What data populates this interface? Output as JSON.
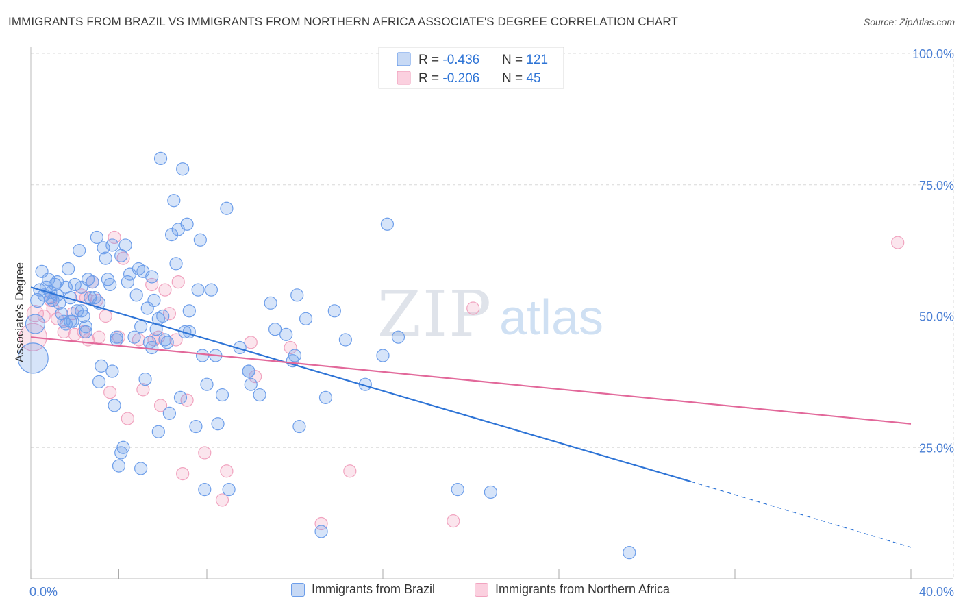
{
  "header": {
    "title": "IMMIGRANTS FROM BRAZIL VS IMMIGRANTS FROM NORTHERN AFRICA ASSOCIATE'S DEGREE CORRELATION CHART",
    "source": "Source: ZipAtlas.com"
  },
  "watermark": {
    "zip": "ZIP",
    "atlas": "atlas"
  },
  "legend_top": {
    "rows": [
      {
        "r_label": "R = ",
        "r_value": "-0.436",
        "n_label": "N = ",
        "n_value": "121"
      },
      {
        "r_label": "R = ",
        "r_value": "-0.206",
        "n_label": "N = ",
        "n_value": "45"
      }
    ]
  },
  "chart_data": {
    "type": "scatter",
    "title": "IMMIGRANTS FROM BRAZIL VS IMMIGRANTS FROM NORTHERN AFRICA ASSOCIATE'S DEGREE CORRELATION CHART",
    "xlabel": "",
    "ylabel": "Associate's Degree",
    "xlim": [
      0,
      40
    ],
    "ylim": [
      0,
      100
    ],
    "x_tick_labels": [
      "0.0%",
      "40.0%"
    ],
    "y_tick_labels": [
      "25.0%",
      "50.0%",
      "75.0%",
      "100.0%"
    ],
    "y_ticks": [
      25,
      50,
      75,
      100
    ],
    "grid": true,
    "legend_position": "top-center",
    "colors": {
      "brazil": "#6d9eea",
      "brazil_line": "#2e74d6",
      "nafrica": "#f1a3bf",
      "nafrica_line": "#e2689a",
      "tick_text": "#4a7fd4"
    },
    "series": [
      {
        "name": "Immigrants from Brazil",
        "r": -0.436,
        "n": 121,
        "trend": {
          "x0": 0,
          "y0": 55.5,
          "x1": 30,
          "y1": 18.5,
          "dash_to_x": 40,
          "dash_to_y": 6
        },
        "points": [
          [
            0.1,
            42,
            22
          ],
          [
            0.2,
            48.5,
            14
          ],
          [
            0.3,
            53,
            10
          ],
          [
            0.4,
            55,
            9
          ],
          [
            0.5,
            58.5,
            9
          ],
          [
            0.6,
            54,
            9
          ],
          [
            0.7,
            55.5,
            9
          ],
          [
            0.8,
            57,
            9
          ],
          [
            0.9,
            54.5,
            9
          ],
          [
            1.0,
            53,
            9
          ],
          [
            1.1,
            56,
            9
          ],
          [
            1.2,
            56.5,
            9
          ],
          [
            1.3,
            52.5,
            9
          ],
          [
            1.4,
            50.5,
            9
          ],
          [
            1.5,
            49,
            9
          ],
          [
            1.6,
            48.5,
            9
          ],
          [
            1.7,
            59,
            9
          ],
          [
            1.8,
            53.5,
            9
          ],
          [
            1.9,
            49,
            9
          ],
          [
            2.0,
            56,
            9
          ],
          [
            2.1,
            51,
            9
          ],
          [
            2.2,
            62.5,
            9
          ],
          [
            2.3,
            55.5,
            9
          ],
          [
            2.4,
            50,
            9
          ],
          [
            2.5,
            47,
            9
          ],
          [
            2.6,
            57,
            9
          ],
          [
            2.7,
            53.5,
            9
          ],
          [
            2.8,
            56.5,
            9
          ],
          [
            3.0,
            65,
            9
          ],
          [
            3.1,
            52.5,
            9
          ],
          [
            3.2,
            40.5,
            9
          ],
          [
            3.3,
            63,
            9
          ],
          [
            3.4,
            61,
            9
          ],
          [
            3.5,
            57,
            9
          ],
          [
            3.6,
            56,
            9
          ],
          [
            3.7,
            63.5,
            9
          ],
          [
            3.8,
            33,
            9
          ],
          [
            3.9,
            46,
            9
          ],
          [
            4.1,
            61.5,
            9
          ],
          [
            4.3,
            63.5,
            9
          ],
          [
            4.4,
            56.5,
            9
          ],
          [
            4.5,
            58,
            9
          ],
          [
            4.7,
            46,
            9
          ],
          [
            4.8,
            54,
            9
          ],
          [
            4.9,
            59,
            9
          ],
          [
            5.0,
            48,
            9
          ],
          [
            5.1,
            58.5,
            9
          ],
          [
            5.2,
            38,
            9
          ],
          [
            5.3,
            51.5,
            9
          ],
          [
            5.4,
            45,
            9
          ],
          [
            5.5,
            44,
            9
          ],
          [
            5.6,
            53,
            9
          ],
          [
            5.7,
            47.5,
            9
          ],
          [
            5.8,
            49.5,
            9
          ],
          [
            5.9,
            80,
            9
          ],
          [
            6.0,
            50,
            9
          ],
          [
            6.1,
            45.5,
            9
          ],
          [
            6.3,
            31.5,
            9
          ],
          [
            6.4,
            65.5,
            9
          ],
          [
            6.5,
            72,
            9
          ],
          [
            6.6,
            60,
            9
          ],
          [
            6.7,
            66.5,
            9
          ],
          [
            6.8,
            34.5,
            9
          ],
          [
            6.9,
            78,
            9
          ],
          [
            7.0,
            47,
            9
          ],
          [
            7.1,
            67.5,
            9
          ],
          [
            7.2,
            51,
            9
          ],
          [
            7.5,
            29,
            9
          ],
          [
            7.6,
            55,
            9
          ],
          [
            7.7,
            64.5,
            9
          ],
          [
            7.8,
            42.5,
            9
          ],
          [
            7.9,
            17,
            9
          ],
          [
            8.0,
            37,
            9
          ],
          [
            8.2,
            55,
            9
          ],
          [
            8.4,
            42.5,
            9
          ],
          [
            8.5,
            29.5,
            9
          ],
          [
            8.7,
            35,
            9
          ],
          [
            8.9,
            70.5,
            9
          ],
          [
            9.0,
            17,
            9
          ],
          [
            9.5,
            44,
            9
          ],
          [
            9.9,
            39.5,
            9
          ],
          [
            10.0,
            37,
            9
          ],
          [
            10.4,
            35,
            9
          ],
          [
            10.9,
            52.5,
            9
          ],
          [
            11.1,
            47.5,
            9
          ],
          [
            11.6,
            46.5,
            9
          ],
          [
            11.9,
            41.5,
            9
          ],
          [
            12.0,
            42.5,
            9
          ],
          [
            12.1,
            54,
            9
          ],
          [
            12.2,
            29,
            9
          ],
          [
            12.5,
            49.5,
            9
          ],
          [
            13.2,
            9,
            9
          ],
          [
            13.4,
            34.5,
            9
          ],
          [
            13.8,
            51,
            9
          ],
          [
            14.3,
            45.5,
            9
          ],
          [
            15.2,
            37,
            9
          ],
          [
            16.0,
            42.5,
            9
          ],
          [
            16.2,
            67.5,
            9
          ],
          [
            16.7,
            46,
            9
          ],
          [
            19.4,
            17,
            9
          ],
          [
            20.9,
            16.5,
            9
          ],
          [
            27.2,
            5,
            9
          ],
          [
            1.2,
            54,
            9
          ],
          [
            2.9,
            53.5,
            9
          ],
          [
            4.2,
            25,
            9
          ],
          [
            4.0,
            21.5,
            9
          ],
          [
            5.0,
            21,
            9
          ],
          [
            5.8,
            28,
            9
          ],
          [
            4.1,
            24,
            9
          ],
          [
            3.1,
            37.5,
            9
          ],
          [
            3.7,
            39.5,
            9
          ],
          [
            9.9,
            39.5,
            9
          ],
          [
            2.5,
            48,
            9
          ],
          [
            1.8,
            49,
            9
          ],
          [
            5.5,
            57.5,
            9
          ],
          [
            6.2,
            45,
            9
          ],
          [
            2.3,
            51,
            9
          ],
          [
            0.9,
            53.5,
            9
          ],
          [
            1.6,
            55.5,
            9
          ],
          [
            3.9,
            45.5,
            9
          ],
          [
            7.2,
            47,
            9
          ]
        ]
      },
      {
        "name": "Immigrants from Northern Africa",
        "r": -0.206,
        "n": 45,
        "trend": {
          "x0": 0,
          "y0": 46,
          "x1": 40,
          "y1": 29.5
        },
        "points": [
          [
            0.1,
            46,
            20
          ],
          [
            0.2,
            50.5,
            12
          ],
          [
            0.6,
            50,
            9
          ],
          [
            0.9,
            53,
            9
          ],
          [
            1.0,
            51.5,
            9
          ],
          [
            1.2,
            49.5,
            9
          ],
          [
            1.5,
            47,
            9
          ],
          [
            1.9,
            50.5,
            9
          ],
          [
            2.0,
            46.5,
            9
          ],
          [
            2.3,
            54,
            9
          ],
          [
            2.4,
            47,
            9
          ],
          [
            2.5,
            53.5,
            9
          ],
          [
            2.6,
            45.5,
            9
          ],
          [
            2.8,
            56.5,
            9
          ],
          [
            3.0,
            53,
            9
          ],
          [
            3.1,
            46,
            9
          ],
          [
            3.4,
            50,
            9
          ],
          [
            3.6,
            35.5,
            9
          ],
          [
            3.8,
            65,
            9
          ],
          [
            4.0,
            46,
            9
          ],
          [
            4.2,
            61,
            9
          ],
          [
            4.4,
            30.5,
            9
          ],
          [
            4.9,
            45.5,
            9
          ],
          [
            5.1,
            36,
            9
          ],
          [
            5.5,
            56,
            9
          ],
          [
            5.6,
            45.5,
            9
          ],
          [
            5.8,
            46,
            9
          ],
          [
            5.9,
            33,
            9
          ],
          [
            6.1,
            55,
            9
          ],
          [
            6.3,
            50.5,
            9
          ],
          [
            6.6,
            45.5,
            9
          ],
          [
            6.7,
            56.5,
            9
          ],
          [
            6.9,
            20,
            9
          ],
          [
            7.1,
            34,
            9
          ],
          [
            7.9,
            24,
            9
          ],
          [
            8.7,
            15,
            9
          ],
          [
            8.9,
            20.5,
            9
          ],
          [
            10.0,
            45,
            9
          ],
          [
            10.2,
            38.5,
            9
          ],
          [
            11.8,
            44,
            9
          ],
          [
            13.2,
            10.5,
            9
          ],
          [
            14.5,
            20.5,
            9
          ],
          [
            19.2,
            11,
            9
          ],
          [
            20.1,
            51.5,
            9
          ],
          [
            39.4,
            64,
            9
          ]
        ]
      }
    ]
  },
  "bottom_legend": {
    "items": [
      {
        "label": "Immigrants from Brazil"
      },
      {
        "label": "Immigrants from Northern Africa"
      }
    ]
  }
}
